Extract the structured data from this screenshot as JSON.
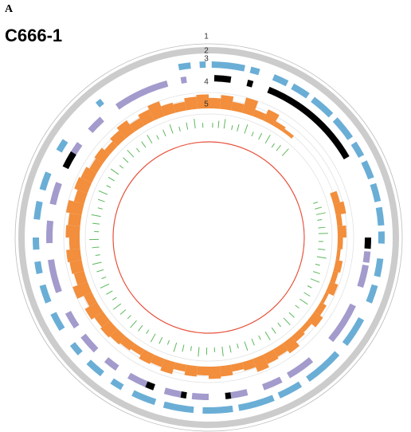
{
  "chart_data": {
    "type": "circos",
    "panel_label": "A",
    "title": "C666-1",
    "track_labels": [
      "1",
      "2",
      "3",
      "4",
      "5"
    ],
    "ring_color": "#cccccc",
    "inner_circle_color": "#e8503a",
    "blue": {
      "color": "#6aaed6",
      "segments": [
        [
          1,
          12
        ],
        [
          14,
          17
        ],
        [
          22,
          27
        ],
        [
          29,
          35
        ],
        [
          37,
          45
        ],
        [
          47,
          55
        ],
        [
          57,
          62
        ],
        [
          64,
          70
        ],
        [
          72,
          78
        ],
        [
          80,
          86
        ],
        [
          88,
          92
        ],
        [
          97,
          103
        ],
        [
          106,
          112
        ],
        [
          118,
          128
        ],
        [
          132,
          145
        ],
        [
          148,
          156
        ],
        [
          158,
          170
        ],
        [
          172,
          182
        ],
        [
          185,
          195
        ],
        [
          198,
          206
        ],
        [
          210,
          214
        ],
        [
          218,
          224
        ],
        [
          228,
          232
        ],
        [
          238,
          244
        ],
        [
          248,
          254
        ],
        [
          258,
          262
        ],
        [
          266,
          270
        ],
        [
          276,
          282
        ],
        [
          286,
          292
        ],
        [
          300,
          304
        ],
        [
          320,
          322
        ],
        [
          350,
          354
        ],
        [
          357,
          359
        ]
      ]
    },
    "purple": {
      "color": "#a39bcc",
      "segments": [
        [
          95,
          99
        ],
        [
          100,
          108
        ],
        [
          115,
          130
        ],
        [
          140,
          150
        ],
        [
          153,
          160
        ],
        [
          166,
          172
        ],
        [
          180,
          186
        ],
        [
          190,
          196
        ],
        [
          203,
          210
        ],
        [
          215,
          220
        ],
        [
          225,
          232
        ],
        [
          236,
          242
        ],
        [
          250,
          262
        ],
        [
          268,
          276
        ],
        [
          282,
          290
        ],
        [
          300,
          306
        ],
        [
          312,
          318
        ],
        [
          325,
          345
        ],
        [
          350,
          352
        ]
      ]
    },
    "black": {
      "color": "#000000",
      "segments": [
        [
          22,
          60
        ],
        [
          2,
          8
        ],
        [
          90,
          94
        ],
        [
          172,
          174
        ],
        [
          188,
          190
        ],
        [
          200,
          203
        ],
        [
          296,
          302
        ],
        [
          14,
          16
        ]
      ]
    },
    "histogram": {
      "color": "#f28e3c",
      "values": [
        6,
        8,
        5,
        9,
        4,
        7,
        3,
        2,
        0,
        0,
        0,
        0,
        0,
        0,
        4,
        6,
        3,
        5,
        3,
        2,
        4,
        3,
        5,
        2,
        4,
        6,
        3,
        4,
        7,
        5,
        6,
        8,
        5,
        4,
        6,
        7,
        5,
        6,
        4,
        7,
        5,
        6,
        4,
        5,
        6,
        7,
        6,
        8,
        5,
        9,
        6,
        7,
        8,
        6,
        8,
        7,
        9,
        6,
        8,
        7,
        5,
        6,
        4,
        6,
        8,
        5,
        7,
        9,
        6,
        5,
        7,
        8
      ]
    },
    "ticks": {
      "color": "#5cb85c",
      "positions": [
        2,
        5,
        8,
        12,
        15,
        19,
        23,
        27,
        31,
        35,
        38,
        42,
        72,
        75,
        78,
        81,
        85,
        88,
        92,
        96,
        100,
        104,
        108,
        112,
        116,
        120,
        124,
        128,
        133,
        137,
        141,
        145,
        149,
        153,
        157,
        161,
        165,
        169,
        173,
        177,
        181,
        185,
        189,
        193,
        197,
        201,
        205,
        209,
        213,
        217,
        221,
        225,
        229,
        233,
        237,
        241,
        245,
        249,
        253,
        257,
        261,
        265,
        269,
        273,
        277,
        281,
        285,
        289,
        293,
        297,
        301,
        305,
        309,
        313,
        317,
        321,
        325,
        329,
        333,
        337,
        341,
        345,
        349,
        353,
        357
      ]
    }
  }
}
